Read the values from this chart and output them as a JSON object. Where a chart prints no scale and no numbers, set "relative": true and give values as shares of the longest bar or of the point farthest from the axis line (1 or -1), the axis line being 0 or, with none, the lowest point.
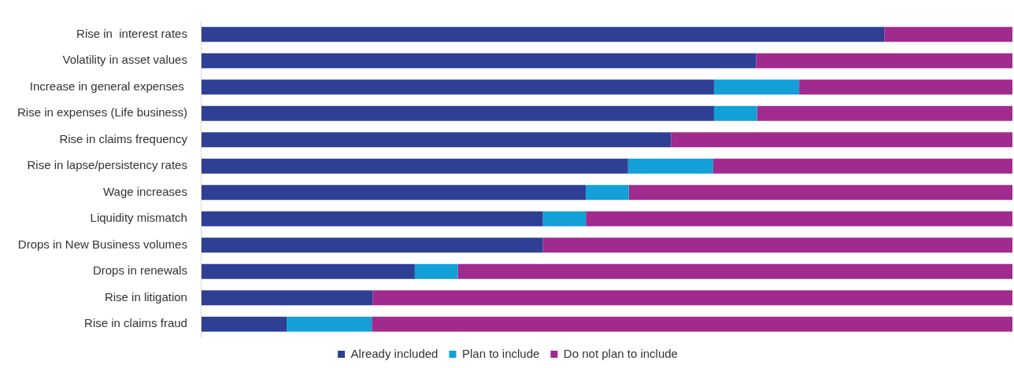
{
  "chart_data": {
    "type": "bar",
    "orientation": "horizontal",
    "stacked": true,
    "relative": true,
    "legend": "bottom",
    "categories": [
      "Rise in  interest rates",
      "Volatility in asset values",
      "Increase in general expenses ",
      "Rise in expenses (Life business)",
      "Rise in claims frequency",
      "Rise in lapse/persistency rates",
      "Wage increases",
      "Liquidity mismatch",
      "Drops in New Business volumes",
      "Drops in renewals",
      "Rise in litigation",
      "Rise in claims fraud"
    ],
    "series": [
      {
        "name": "Already included",
        "color": "#2e3f94",
        "values": [
          0.842,
          0.684,
          0.632,
          0.632,
          0.579,
          0.526,
          0.474,
          0.421,
          0.421,
          0.263,
          0.211,
          0.105
        ]
      },
      {
        "name": "Plan to include",
        "color": "#139fd8",
        "values": [
          0,
          0,
          0.105,
          0.053,
          0,
          0.105,
          0.053,
          0.053,
          0,
          0.053,
          0,
          0.105
        ]
      },
      {
        "name": "Do not plan to include",
        "color": "#a12a8f",
        "values": [
          0.158,
          0.316,
          0.263,
          0.315,
          0.421,
          0.369,
          0.473,
          0.526,
          0.579,
          0.684,
          0.789,
          0.79
        ]
      }
    ]
  }
}
